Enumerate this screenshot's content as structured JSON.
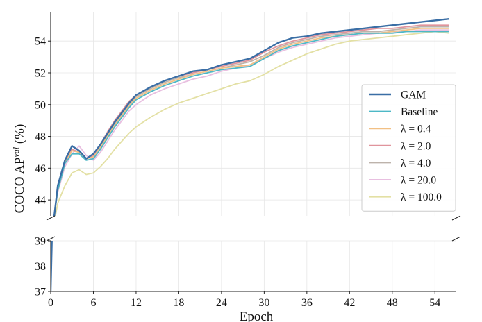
{
  "chart_data": {
    "type": "line",
    "xlabel": "Epoch",
    "ylabel": "COCO AP",
    "ylabel_superscript": "val",
    "ylabel_suffix": " (%)",
    "broken_y_axis": true,
    "xlim": [
      0,
      57
    ],
    "ylim_top": [
      43,
      55.8
    ],
    "ylim_bottom": [
      37,
      39
    ],
    "xticks": [
      0,
      6,
      12,
      18,
      24,
      30,
      36,
      42,
      48,
      54
    ],
    "yticks_top": [
      44,
      46,
      48,
      50,
      52,
      54
    ],
    "yticks_bottom": [
      37,
      38,
      39
    ],
    "grid": true,
    "legend_position": "center-right",
    "series": [
      {
        "name": "GAM",
        "color": "#3a6ea5",
        "x": [
          0,
          0.5,
          1,
          2,
          3,
          4,
          5,
          6,
          7,
          8,
          9,
          10,
          11,
          12,
          14,
          16,
          18,
          20,
          22,
          24,
          26,
          28,
          30,
          32,
          34,
          36,
          38,
          40,
          42,
          44,
          46,
          48,
          50,
          52,
          54,
          56
        ],
        "values": [
          37,
          43.0,
          44.9,
          46.5,
          47.4,
          47.1,
          46.6,
          46.9,
          47.5,
          48.2,
          48.9,
          49.5,
          50.1,
          50.6,
          51.1,
          51.5,
          51.8,
          52.1,
          52.2,
          52.5,
          52.7,
          52.9,
          53.4,
          53.9,
          54.2,
          54.3,
          54.5,
          54.6,
          54.7,
          54.8,
          54.9,
          55.0,
          55.1,
          55.2,
          55.3,
          55.4
        ]
      },
      {
        "name": "Baseline",
        "color": "#4db8c6",
        "x": [
          0,
          0.5,
          1,
          2,
          3,
          4,
          5,
          6,
          7,
          8,
          9,
          10,
          11,
          12,
          14,
          16,
          18,
          20,
          22,
          24,
          26,
          28,
          30,
          32,
          34,
          36,
          38,
          40,
          42,
          44,
          46,
          48,
          50,
          52,
          54,
          56
        ],
        "values": [
          38.8,
          43.0,
          44.6,
          46.3,
          46.9,
          46.9,
          46.5,
          46.6,
          47.2,
          47.9,
          48.6,
          49.2,
          49.8,
          50.3,
          50.8,
          51.2,
          51.5,
          51.8,
          52.0,
          52.2,
          52.3,
          52.4,
          52.9,
          53.4,
          53.7,
          53.9,
          54.1,
          54.3,
          54.4,
          54.5,
          54.5,
          54.5,
          54.6,
          54.6,
          54.6,
          54.6
        ]
      },
      {
        "name": "λ = 0.4",
        "color": "#f2c084",
        "x": [
          0,
          0.5,
          1,
          2,
          3,
          4,
          5,
          6,
          7,
          8,
          9,
          10,
          11,
          12,
          14,
          16,
          18,
          20,
          22,
          24,
          26,
          28,
          30,
          32,
          34,
          36,
          38,
          40,
          42,
          44,
          46,
          48,
          50,
          52,
          54,
          56
        ],
        "values": [
          38.4,
          43.0,
          44.6,
          46.3,
          47.1,
          47.0,
          46.6,
          46.7,
          47.3,
          48.0,
          48.7,
          49.3,
          49.9,
          50.4,
          50.9,
          51.3,
          51.6,
          51.9,
          52.1,
          52.3,
          52.4,
          52.5,
          53.0,
          53.5,
          53.8,
          54.0,
          54.2,
          54.3,
          54.4,
          54.5,
          54.5,
          54.6,
          54.7,
          54.8,
          54.8,
          54.8
        ]
      },
      {
        "name": "λ = 2.0",
        "color": "#e0949c",
        "x": [
          0,
          0.5,
          1,
          2,
          3,
          4,
          5,
          6,
          7,
          8,
          9,
          10,
          11,
          12,
          14,
          16,
          18,
          20,
          22,
          24,
          26,
          28,
          30,
          32,
          34,
          36,
          38,
          40,
          42,
          44,
          46,
          48,
          50,
          52,
          54,
          56
        ],
        "values": [
          38.2,
          43.0,
          44.8,
          46.4,
          47.2,
          47.0,
          46.6,
          46.8,
          47.5,
          48.3,
          49.0,
          49.6,
          50.2,
          50.6,
          51.1,
          51.5,
          51.8,
          52.0,
          52.2,
          52.4,
          52.6,
          52.8,
          53.3,
          53.7,
          54.0,
          54.2,
          54.4,
          54.5,
          54.6,
          54.7,
          54.8,
          54.8,
          54.9,
          55.0,
          55.0,
          55.0
        ]
      },
      {
        "name": "λ = 4.0",
        "color": "#bdb3ab",
        "x": [
          0,
          0.5,
          1,
          2,
          3,
          4,
          5,
          6,
          7,
          8,
          9,
          10,
          11,
          12,
          14,
          16,
          18,
          20,
          22,
          24,
          26,
          28,
          30,
          32,
          34,
          36,
          38,
          40,
          42,
          44,
          46,
          48,
          50,
          52,
          54,
          56
        ],
        "values": [
          38.6,
          43.0,
          44.7,
          46.3,
          47.1,
          47.0,
          46.6,
          46.7,
          47.4,
          48.1,
          48.8,
          49.4,
          50.0,
          50.5,
          51.0,
          51.4,
          51.7,
          51.9,
          52.1,
          52.3,
          52.5,
          52.7,
          53.1,
          53.6,
          53.9,
          54.1,
          54.3,
          54.4,
          54.5,
          54.6,
          54.6,
          54.7,
          54.8,
          54.9,
          54.9,
          54.9
        ]
      },
      {
        "name": "λ = 20.0",
        "color": "#e8bfe0",
        "x": [
          0,
          0.5,
          1,
          2,
          3,
          4,
          5,
          6,
          7,
          8,
          9,
          10,
          11,
          12,
          14,
          16,
          18,
          20,
          22,
          24,
          26,
          28,
          30,
          32,
          34,
          36,
          38,
          40,
          42,
          44,
          46,
          48,
          50,
          52,
          54,
          56
        ],
        "values": [
          38.0,
          43.0,
          44.5,
          46.1,
          46.9,
          47.4,
          46.8,
          46.5,
          47.0,
          47.7,
          48.4,
          49.0,
          49.6,
          50.0,
          50.6,
          51.0,
          51.3,
          51.6,
          51.8,
          52.1,
          52.3,
          52.5,
          52.9,
          53.3,
          53.6,
          53.8,
          54.0,
          54.2,
          54.3,
          54.4,
          54.5,
          54.6,
          54.6,
          54.7,
          54.7,
          54.7
        ]
      },
      {
        "name": "λ = 100.0",
        "color": "#e3e0a4",
        "x": [
          0,
          0.5,
          1,
          2,
          3,
          4,
          5,
          6,
          7,
          8,
          9,
          10,
          11,
          12,
          14,
          16,
          18,
          20,
          22,
          24,
          26,
          28,
          30,
          32,
          34,
          36,
          38,
          40,
          42,
          44,
          46,
          48,
          50,
          52,
          54,
          56
        ],
        "values": [
          37.6,
          42.6,
          43.8,
          44.9,
          45.7,
          45.9,
          45.6,
          45.7,
          46.1,
          46.6,
          47.2,
          47.7,
          48.2,
          48.6,
          49.2,
          49.7,
          50.1,
          50.4,
          50.7,
          51.0,
          51.3,
          51.5,
          51.9,
          52.4,
          52.8,
          53.2,
          53.5,
          53.8,
          54.0,
          54.1,
          54.2,
          54.3,
          54.4,
          54.5,
          54.6,
          54.5
        ]
      }
    ]
  }
}
